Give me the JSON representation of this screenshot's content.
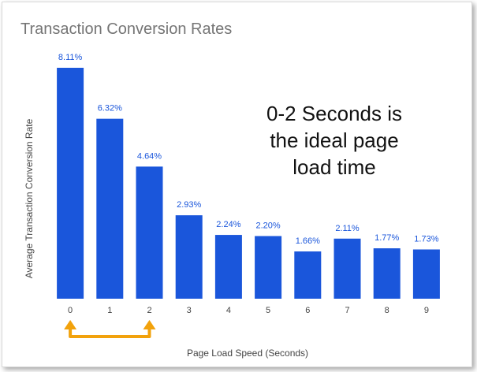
{
  "chart_data": {
    "type": "bar",
    "title": "Transaction Conversion Rates",
    "xlabel": "Page Load Speed (Seconds)",
    "ylabel": "Average Transaction Conversion Rate",
    "categories": [
      "0",
      "1",
      "2",
      "3",
      "4",
      "5",
      "6",
      "7",
      "8",
      "9"
    ],
    "values": [
      8.11,
      6.32,
      4.64,
      2.93,
      2.24,
      2.2,
      1.66,
      2.11,
      1.77,
      1.73
    ],
    "value_labels": [
      "8.11%",
      "6.32%",
      "4.64%",
      "2.93%",
      "2.24%",
      "2.20%",
      "1.66%",
      "2.11%",
      "1.77%",
      "1.73%"
    ],
    "ylim": [
      0,
      8.11
    ],
    "grid": false,
    "bar_color": "#1a56db",
    "annotation": {
      "lines": [
        "0-2 Seconds is",
        "the ideal page",
        "load time"
      ]
    },
    "highlight_range": {
      "from": "0",
      "to": "2",
      "color": "#f2a20c"
    }
  }
}
